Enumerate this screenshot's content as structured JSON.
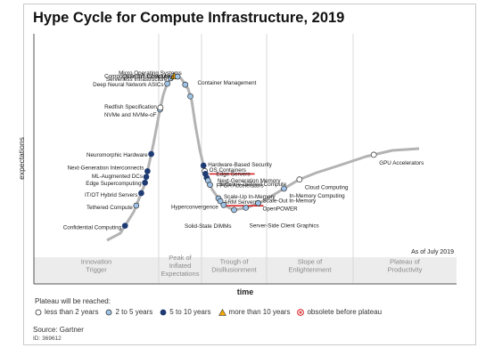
{
  "chart_data": {
    "type": "scatter",
    "title": "Hype Cycle for Compute Infrastructure, 2019",
    "xlabel": "time",
    "ylabel": "expectations",
    "as_of": "As of July 2019",
    "source": "Source: Gartner",
    "source_id": "ID: 369612",
    "phases": [
      "Innovation\nTrigger",
      "Peak of\nInflated\nExpectations",
      "Trough of\nDisillusionment",
      "Slope of\nEnlightenment",
      "Plateau of\nProductivity"
    ],
    "legend": {
      "title": "Plateau will be reached:",
      "items": [
        {
          "key": "lt2",
          "label": "less than 2 years"
        },
        {
          "key": "2to5",
          "label": "2 to 5 years"
        },
        {
          "key": "5to10",
          "label": "5 to 10 years"
        },
        {
          "key": "gt10",
          "label": "more than 10 years"
        },
        {
          "key": "obsolete",
          "label": "obsolete before plateau"
        }
      ]
    },
    "colors": {
      "lt2": "#ffffff",
      "2to5": "#9ec3e6",
      "5to10": "#1f3b73",
      "gt10": "#f2a900",
      "obsolete": "#d9262b",
      "curve": "#b3b3b3",
      "underline": "#d9262b"
    },
    "points": [
      {
        "label": "Confidential Computing",
        "category": "5to10",
        "phase": 0,
        "position": 0.73
      },
      {
        "label": "Tethered Compute",
        "category": "2to5",
        "phase": 0,
        "position": 0.82
      },
      {
        "label": "IT/OT Hybrid Servers",
        "category": "5to10",
        "phase": 0,
        "position": 0.86
      },
      {
        "label": "Edge Supercomputing",
        "category": "5to10",
        "phase": 0,
        "position": 0.89
      },
      {
        "label": "ML-Augmented DCs",
        "category": "5to10",
        "phase": 0,
        "position": 0.9
      },
      {
        "label": "Next-Generation Interconnects",
        "category": "5to10",
        "phase": 0,
        "position": 0.91
      },
      {
        "label": "Neuromorphic Hardware",
        "category": "5to10",
        "phase": 0,
        "position": 0.94
      },
      {
        "label": "NVMe and NVMe-oF",
        "category": "2to5",
        "phase": 1,
        "position": 0.03
      },
      {
        "label": "Redfish Specification",
        "category": "lt2",
        "phase": 1,
        "position": 0.04
      },
      {
        "label": "Deep Neural Network ASICs",
        "category": "2to5",
        "phase": 1,
        "position": 0.2
      },
      {
        "label": "Serverless Infrastructure",
        "category": "2to5",
        "phase": 1,
        "position": 0.28
      },
      {
        "label": "Composable Infrastructure",
        "category": "gt10",
        "phase": 1,
        "position": 0.36
      },
      {
        "label": "Quantum Computing",
        "category": "2to5",
        "phase": 1,
        "position": 0.44
      },
      {
        "label": "Micro Operating Systems",
        "category": "2to5",
        "phase": 1,
        "position": 0.62
      },
      {
        "label": "Container Management",
        "category": "2to5",
        "phase": 1,
        "position": 0.74
      },
      {
        "label": "Hardware-Based Security",
        "category": "5to10",
        "phase": 2,
        "position": 0.03
      },
      {
        "label": "OS Containers",
        "category": "lt2",
        "phase": 2,
        "position": 0.05,
        "underline": true
      },
      {
        "label": "Edge Servers",
        "category": "5to10",
        "phase": 2,
        "position": 0.06
      },
      {
        "label": "Next-Generation Memory",
        "category": "5to10",
        "phase": 2,
        "position": 0.08
      },
      {
        "label": "Software-Defined Compute",
        "category": "2to5",
        "phase": 2,
        "position": 0.1
      },
      {
        "label": "FPGA Accelerators",
        "category": "2to5",
        "phase": 2,
        "position": 0.13
      },
      {
        "label": "Scale-Up In-Memory",
        "category": "2to5",
        "phase": 2,
        "position": 0.26
      },
      {
        "label": "ARM Servers",
        "category": "2to5",
        "phase": 2,
        "position": 0.29,
        "underline": true
      },
      {
        "label": "Hyperconvergence",
        "category": "2to5",
        "phase": 2,
        "position": 0.34
      },
      {
        "label": "Solid-State DIMMs",
        "category": "2to5",
        "phase": 2,
        "position": 0.5
      },
      {
        "label": "Server-Side Client Graphics",
        "category": "2to5",
        "phase": 2,
        "position": 0.68
      },
      {
        "label": "Scale-Out In-Memory",
        "category": "2to5",
        "phase": 2,
        "position": 0.87
      },
      {
        "label": "OpenPOWER",
        "category": "2to5",
        "phase": 2,
        "position": 0.87
      },
      {
        "label": "In-Memory Computing",
        "category": "2to5",
        "phase": 3,
        "position": 0.2
      },
      {
        "label": "Cloud Computing",
        "category": "lt2",
        "phase": 3,
        "position": 0.38
      },
      {
        "label": "GPU Accelerators",
        "category": "lt2",
        "phase": 4,
        "position": 0.2
      }
    ]
  }
}
